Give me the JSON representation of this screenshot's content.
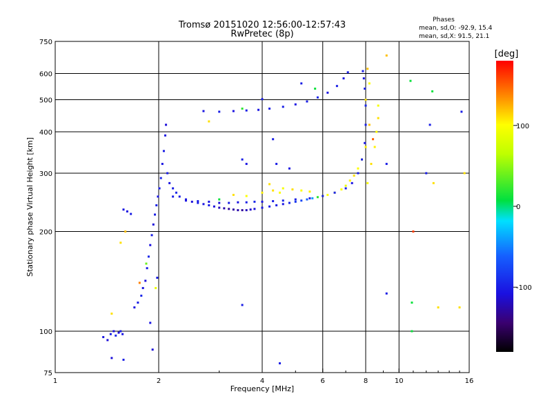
{
  "title_line1": "Tromsø 20151020 12:56:00-12:57:43",
  "title_line2": "RwPretec (8p)",
  "phases": {
    "header": "Phases",
    "o_line": "mean, sd,O: -92.9, 15.4",
    "x_line": "mean, sd,X:  91.5, 21.1"
  },
  "colorbar": {
    "label": "[deg]",
    "ticks": [
      {
        "value": 100,
        "label": "100"
      },
      {
        "value": 0,
        "label": "0"
      },
      {
        "value": -100,
        "label": "-100"
      }
    ],
    "range": [
      -180,
      180
    ]
  },
  "chart_data": {
    "type": "scatter",
    "title": "Tromsø 20151020 12:56:00-12:57:43",
    "subtitle": "RwPretec (8p)",
    "xlabel": "Frequency [MHz]",
    "ylabel": "Stationary phase Virtual Height [km]",
    "xscale": "log",
    "yscale": "log",
    "xlim": [
      1,
      16
    ],
    "ylim": [
      75,
      750
    ],
    "xticks": [
      {
        "value": 1,
        "label": "1"
      },
      {
        "value": 2,
        "label": "2"
      },
      {
        "value": 4,
        "label": "4"
      },
      {
        "value": 6,
        "label": "6"
      },
      {
        "value": 8,
        "label": "8"
      },
      {
        "value": 10,
        "label": "10"
      },
      {
        "value": 16,
        "label": "16"
      }
    ],
    "yticks": [
      {
        "value": 75,
        "label": "75"
      },
      {
        "value": 100,
        "label": "100"
      },
      {
        "value": 200,
        "label": "200"
      },
      {
        "value": 300,
        "label": "300"
      },
      {
        "value": 400,
        "label": "400"
      },
      {
        "value": 500,
        "label": "500"
      },
      {
        "value": 600,
        "label": "600"
      },
      {
        "value": 750,
        "label": "750"
      }
    ],
    "x_gridlines": [
      2,
      4,
      6,
      8,
      10
    ],
    "y_gridlines": [
      100,
      200,
      300,
      400,
      500,
      600
    ],
    "color_by": "phase [deg]",
    "points": [
      {
        "x": 1.38,
        "y": 96,
        "c": -105
      },
      {
        "x": 1.42,
        "y": 94,
        "c": -110
      },
      {
        "x": 1.45,
        "y": 98,
        "c": -100
      },
      {
        "x": 1.48,
        "y": 100,
        "c": -108
      },
      {
        "x": 1.5,
        "y": 97,
        "c": -95
      },
      {
        "x": 1.53,
        "y": 99,
        "c": -112
      },
      {
        "x": 1.55,
        "y": 100,
        "c": -100
      },
      {
        "x": 1.57,
        "y": 98,
        "c": -105
      },
      {
        "x": 1.46,
        "y": 83,
        "c": -110
      },
      {
        "x": 1.58,
        "y": 82,
        "c": -100
      },
      {
        "x": 1.92,
        "y": 88,
        "c": -110
      },
      {
        "x": 1.89,
        "y": 106,
        "c": -105
      },
      {
        "x": 1.46,
        "y": 113,
        "c": 110
      },
      {
        "x": 1.55,
        "y": 185,
        "c": 110
      },
      {
        "x": 1.6,
        "y": 200,
        "c": 120
      },
      {
        "x": 1.58,
        "y": 233,
        "c": -105
      },
      {
        "x": 1.62,
        "y": 230,
        "c": -108
      },
      {
        "x": 1.66,
        "y": 226,
        "c": -100
      },
      {
        "x": 1.7,
        "y": 118,
        "c": -108
      },
      {
        "x": 1.74,
        "y": 122,
        "c": -100
      },
      {
        "x": 1.78,
        "y": 128,
        "c": -95
      },
      {
        "x": 1.8,
        "y": 135,
        "c": -105
      },
      {
        "x": 1.83,
        "y": 142,
        "c": -110
      },
      {
        "x": 1.85,
        "y": 155,
        "c": -100
      },
      {
        "x": 1.87,
        "y": 168,
        "c": -95
      },
      {
        "x": 1.89,
        "y": 182,
        "c": -108
      },
      {
        "x": 1.91,
        "y": 195,
        "c": -100
      },
      {
        "x": 1.93,
        "y": 210,
        "c": -110
      },
      {
        "x": 1.95,
        "y": 225,
        "c": -100
      },
      {
        "x": 1.97,
        "y": 240,
        "c": -98
      },
      {
        "x": 1.99,
        "y": 255,
        "c": -105
      },
      {
        "x": 2.01,
        "y": 270,
        "c": -100
      },
      {
        "x": 2.03,
        "y": 290,
        "c": -96
      },
      {
        "x": 2.05,
        "y": 320,
        "c": -105
      },
      {
        "x": 2.07,
        "y": 350,
        "c": -100
      },
      {
        "x": 2.09,
        "y": 390,
        "c": -105
      },
      {
        "x": 2.1,
        "y": 420,
        "c": -110
      },
      {
        "x": 1.84,
        "y": 160,
        "c": 40
      },
      {
        "x": 1.96,
        "y": 135,
        "c": 90
      },
      {
        "x": 1.76,
        "y": 140,
        "c": 140
      },
      {
        "x": 1.98,
        "y": 145,
        "c": -100
      },
      {
        "x": 2.12,
        "y": 300,
        "c": -100
      },
      {
        "x": 2.15,
        "y": 280,
        "c": -105
      },
      {
        "x": 2.2,
        "y": 270,
        "c": -100
      },
      {
        "x": 2.25,
        "y": 262,
        "c": -95
      },
      {
        "x": 2.3,
        "y": 255,
        "c": -100
      },
      {
        "x": 2.4,
        "y": 250,
        "c": -105
      },
      {
        "x": 2.5,
        "y": 246,
        "c": -110
      },
      {
        "x": 2.6,
        "y": 244,
        "c": -100
      },
      {
        "x": 2.7,
        "y": 242,
        "c": -105
      },
      {
        "x": 2.8,
        "y": 240,
        "c": -100
      },
      {
        "x": 2.9,
        "y": 238,
        "c": -110
      },
      {
        "x": 3.0,
        "y": 236,
        "c": -120
      },
      {
        "x": 3.1,
        "y": 235,
        "c": -125
      },
      {
        "x": 3.2,
        "y": 234,
        "c": -130
      },
      {
        "x": 3.3,
        "y": 233,
        "c": -128
      },
      {
        "x": 3.4,
        "y": 232,
        "c": -125
      },
      {
        "x": 3.5,
        "y": 232,
        "c": -130
      },
      {
        "x": 3.6,
        "y": 232,
        "c": -120
      },
      {
        "x": 3.7,
        "y": 233,
        "c": -115
      },
      {
        "x": 3.8,
        "y": 234,
        "c": -110
      },
      {
        "x": 4.0,
        "y": 236,
        "c": -105
      },
      {
        "x": 4.2,
        "y": 238,
        "c": -100
      },
      {
        "x": 4.4,
        "y": 240,
        "c": -100
      },
      {
        "x": 4.6,
        "y": 242,
        "c": -105
      },
      {
        "x": 4.8,
        "y": 244,
        "c": -95
      },
      {
        "x": 5.0,
        "y": 246,
        "c": -85
      },
      {
        "x": 5.2,
        "y": 248,
        "c": -75
      },
      {
        "x": 5.4,
        "y": 250,
        "c": -60
      },
      {
        "x": 5.6,
        "y": 252,
        "c": -40
      },
      {
        "x": 5.8,
        "y": 254,
        "c": 20
      },
      {
        "x": 6.0,
        "y": 256,
        "c": 80
      },
      {
        "x": 6.2,
        "y": 258,
        "c": 100
      },
      {
        "x": 6.5,
        "y": 262,
        "c": 110
      },
      {
        "x": 6.8,
        "y": 268,
        "c": 100
      },
      {
        "x": 7.0,
        "y": 275,
        "c": 90
      },
      {
        "x": 7.2,
        "y": 285,
        "c": 105
      },
      {
        "x": 7.4,
        "y": 295,
        "c": 110
      },
      {
        "x": 7.6,
        "y": 310,
        "c": 100
      },
      {
        "x": 7.8,
        "y": 330,
        "c": 95
      },
      {
        "x": 8.0,
        "y": 360,
        "c": 105
      },
      {
        "x": 2.2,
        "y": 255,
        "c": -100
      },
      {
        "x": 2.4,
        "y": 248,
        "c": -105
      },
      {
        "x": 2.6,
        "y": 247,
        "c": -100
      },
      {
        "x": 2.8,
        "y": 246,
        "c": -105
      },
      {
        "x": 3.0,
        "y": 244,
        "c": -110
      },
      {
        "x": 3.2,
        "y": 244,
        "c": -100
      },
      {
        "x": 3.4,
        "y": 245,
        "c": -105
      },
      {
        "x": 3.6,
        "y": 245,
        "c": -100
      },
      {
        "x": 3.8,
        "y": 246,
        "c": -95
      },
      {
        "x": 4.0,
        "y": 246,
        "c": -105
      },
      {
        "x": 4.3,
        "y": 247,
        "c": -100
      },
      {
        "x": 4.6,
        "y": 248,
        "c": -95
      },
      {
        "x": 5.0,
        "y": 250,
        "c": -100
      },
      {
        "x": 5.5,
        "y": 252,
        "c": -105
      },
      {
        "x": 6.0,
        "y": 256,
        "c": -100
      },
      {
        "x": 6.5,
        "y": 262,
        "c": -95
      },
      {
        "x": 7.0,
        "y": 270,
        "c": -100
      },
      {
        "x": 7.3,
        "y": 280,
        "c": -105
      },
      {
        "x": 7.6,
        "y": 300,
        "c": -100
      },
      {
        "x": 7.8,
        "y": 330,
        "c": -98
      },
      {
        "x": 7.95,
        "y": 370,
        "c": -105
      },
      {
        "x": 8.0,
        "y": 420,
        "c": -100
      },
      {
        "x": 8.0,
        "y": 480,
        "c": -95
      },
      {
        "x": 7.95,
        "y": 540,
        "c": -100
      },
      {
        "x": 7.9,
        "y": 580,
        "c": -105
      },
      {
        "x": 7.85,
        "y": 610,
        "c": -100
      },
      {
        "x": 3.3,
        "y": 258,
        "c": 110
      },
      {
        "x": 3.6,
        "y": 256,
        "c": 100
      },
      {
        "x": 4.0,
        "y": 262,
        "c": 105
      },
      {
        "x": 4.3,
        "y": 266,
        "c": 110
      },
      {
        "x": 4.6,
        "y": 270,
        "c": 95
      },
      {
        "x": 4.9,
        "y": 268,
        "c": 110
      },
      {
        "x": 5.2,
        "y": 266,
        "c": 100
      },
      {
        "x": 5.5,
        "y": 264,
        "c": 105
      },
      {
        "x": 4.2,
        "y": 278,
        "c": 110
      },
      {
        "x": 4.5,
        "y": 262,
        "c": 100
      },
      {
        "x": 8.1,
        "y": 280,
        "c": 100
      },
      {
        "x": 8.3,
        "y": 320,
        "c": 110
      },
      {
        "x": 8.5,
        "y": 360,
        "c": 105
      },
      {
        "x": 8.6,
        "y": 400,
        "c": 100
      },
      {
        "x": 8.7,
        "y": 440,
        "c": 110
      },
      {
        "x": 8.7,
        "y": 480,
        "c": 95
      },
      {
        "x": 8.2,
        "y": 420,
        "c": 120
      },
      {
        "x": 8.4,
        "y": 380,
        "c": 150
      },
      {
        "x": 8.0,
        "y": 500,
        "c": 110
      },
      {
        "x": 8.1,
        "y": 620,
        "c": 120
      },
      {
        "x": 8.2,
        "y": 560,
        "c": 100
      },
      {
        "x": 9.2,
        "y": 680,
        "c": 120
      },
      {
        "x": 2.7,
        "y": 462,
        "c": -105
      },
      {
        "x": 3.0,
        "y": 460,
        "c": -100
      },
      {
        "x": 3.3,
        "y": 462,
        "c": -108
      },
      {
        "x": 3.6,
        "y": 464,
        "c": -100
      },
      {
        "x": 3.9,
        "y": 466,
        "c": -105
      },
      {
        "x": 4.2,
        "y": 470,
        "c": -100
      },
      {
        "x": 4.6,
        "y": 476,
        "c": -98
      },
      {
        "x": 5.0,
        "y": 484,
        "c": -105
      },
      {
        "x": 5.4,
        "y": 494,
        "c": -100
      },
      {
        "x": 5.8,
        "y": 508,
        "c": -95
      },
      {
        "x": 6.2,
        "y": 525,
        "c": -105
      },
      {
        "x": 6.6,
        "y": 550,
        "c": -100
      },
      {
        "x": 6.9,
        "y": 580,
        "c": -105
      },
      {
        "x": 7.1,
        "y": 605,
        "c": -100
      },
      {
        "x": 3.5,
        "y": 470,
        "c": 20
      },
      {
        "x": 5.2,
        "y": 560,
        "c": -100
      },
      {
        "x": 5.7,
        "y": 540,
        "c": 10
      },
      {
        "x": 4.0,
        "y": 502,
        "c": -100
      },
      {
        "x": 2.8,
        "y": 430,
        "c": 110
      },
      {
        "x": 3.0,
        "y": 250,
        "c": 10
      },
      {
        "x": 3.5,
        "y": 330,
        "c": -100
      },
      {
        "x": 3.6,
        "y": 320,
        "c": -105
      },
      {
        "x": 4.4,
        "y": 320,
        "c": -100
      },
      {
        "x": 4.8,
        "y": 310,
        "c": -105
      },
      {
        "x": 4.3,
        "y": 380,
        "c": -100
      },
      {
        "x": 3.5,
        "y": 120,
        "c": -100
      },
      {
        "x": 4.5,
        "y": 80,
        "c": -100
      },
      {
        "x": 9.2,
        "y": 320,
        "c": -100
      },
      {
        "x": 10.8,
        "y": 570,
        "c": 10
      },
      {
        "x": 10.9,
        "y": 100,
        "c": 10
      },
      {
        "x": 10.9,
        "y": 122,
        "c": 10
      },
      {
        "x": 11.0,
        "y": 200,
        "c": 160
      },
      {
        "x": 12.0,
        "y": 300,
        "c": -100
      },
      {
        "x": 12.3,
        "y": 420,
        "c": -100
      },
      {
        "x": 12.6,
        "y": 280,
        "c": 110
      },
      {
        "x": 13.0,
        "y": 118,
        "c": 110
      },
      {
        "x": 15.0,
        "y": 118,
        "c": 110
      },
      {
        "x": 15.2,
        "y": 460,
        "c": -100
      },
      {
        "x": 15.5,
        "y": 300,
        "c": 110
      },
      {
        "x": 12.5,
        "y": 530,
        "c": 10
      },
      {
        "x": 9.2,
        "y": 130,
        "c": -100
      }
    ]
  }
}
